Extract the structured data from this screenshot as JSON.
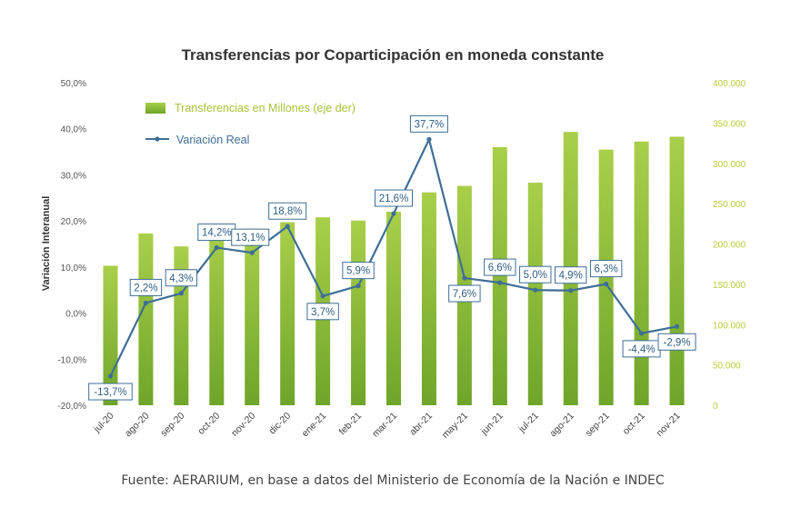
{
  "chart_data": {
    "type": "bar",
    "title": "Transferencias por Coparticipación en moneda constante",
    "ylabel": "Variación Interanual",
    "categories": [
      "jul-20",
      "ago-20",
      "sep-20",
      "oct-20",
      "nov-20",
      "dic-20",
      "ene-21",
      "feb-21",
      "mar-21",
      "abr-21",
      "may-21",
      "jun-21",
      "jul-21",
      "ago-21",
      "sep-21",
      "oct-21",
      "nov-21"
    ],
    "left_axis": {
      "ylim": [
        -20,
        50
      ],
      "tick_labels": [
        "-20,0%",
        "-10,0%",
        "0,0%",
        "10,0%",
        "20,0%",
        "30,0%",
        "40,0%",
        "50,0%"
      ]
    },
    "right_axis": {
      "ylim": [
        0,
        400000
      ],
      "tick_labels": [
        "0",
        "50.000",
        "100.000",
        "150.000",
        "200.000",
        "250.000",
        "300.000",
        "350.000",
        "400.000"
      ]
    },
    "series": [
      {
        "name": "Transferencias en Millones (eje der)",
        "kind": "bar",
        "axis": "right",
        "color": "#7db32e",
        "values": [
          173000,
          213000,
          197000,
          222000,
          219000,
          227000,
          233000,
          229000,
          240000,
          264000,
          272000,
          320000,
          276000,
          339000,
          317000,
          327000,
          333000
        ]
      },
      {
        "name": "Variación Real",
        "kind": "line",
        "axis": "left",
        "color": "#3f6e96",
        "values": [
          -13.7,
          2.2,
          4.3,
          14.2,
          13.1,
          18.8,
          3.7,
          5.9,
          21.6,
          37.7,
          7.6,
          6.6,
          5.0,
          4.9,
          6.3,
          -4.4,
          -2.9
        ],
        "labels": [
          "-13,7%",
          "2,2%",
          "4,3%",
          "14,2%",
          "13,1%",
          "18,8%",
          "3,7%",
          "5,9%",
          "21,6%",
          "37,7%",
          "7,6%",
          "6,6%",
          "5,0%",
          "4,9%",
          "6,3%",
          "-4,4%",
          "-2,9%"
        ]
      }
    ],
    "legend_position": "top-left",
    "grid": false
  },
  "source_note": "Fuente: AERARIUM, en base a datos del Ministerio de Economía de la Nación e INDEC"
}
